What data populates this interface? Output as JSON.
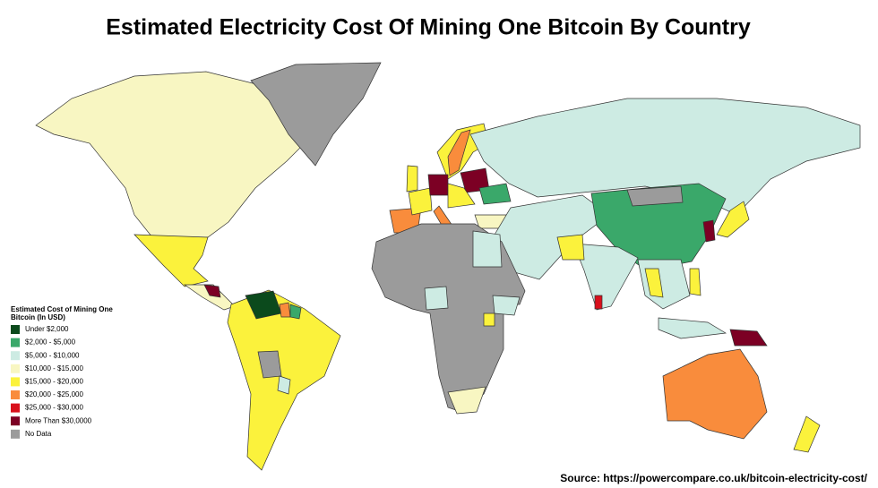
{
  "title": "Estimated Electricity Cost Of Mining One Bitcoin By Country",
  "legend": {
    "title": [
      "Estimated Cost of Mining One",
      "Bitcoin (In USD)"
    ],
    "items": [
      {
        "label": "Under $2,000",
        "color": "#0b4a1c"
      },
      {
        "label": "$2,000 - $5,000",
        "color": "#3aa86a"
      },
      {
        "label": "$5,000 - $10,000",
        "color": "#cdebe3"
      },
      {
        "label": "$10,000 - $15,000",
        "color": "#f8f6c2"
      },
      {
        "label": "$15,000 - $20,000",
        "color": "#fbf23c"
      },
      {
        "label": "$20,000 - $25,000",
        "color": "#f98c3c"
      },
      {
        "label": "$25,000 - $30,000",
        "color": "#d8101c"
      },
      {
        "label": "More Than $30,0000",
        "color": "#7c0024"
      },
      {
        "label": "No Data",
        "color": "#9b9b9b"
      }
    ]
  },
  "source": "Source: https://powercompare.co.uk/bitcoin-electricity-cost/"
}
